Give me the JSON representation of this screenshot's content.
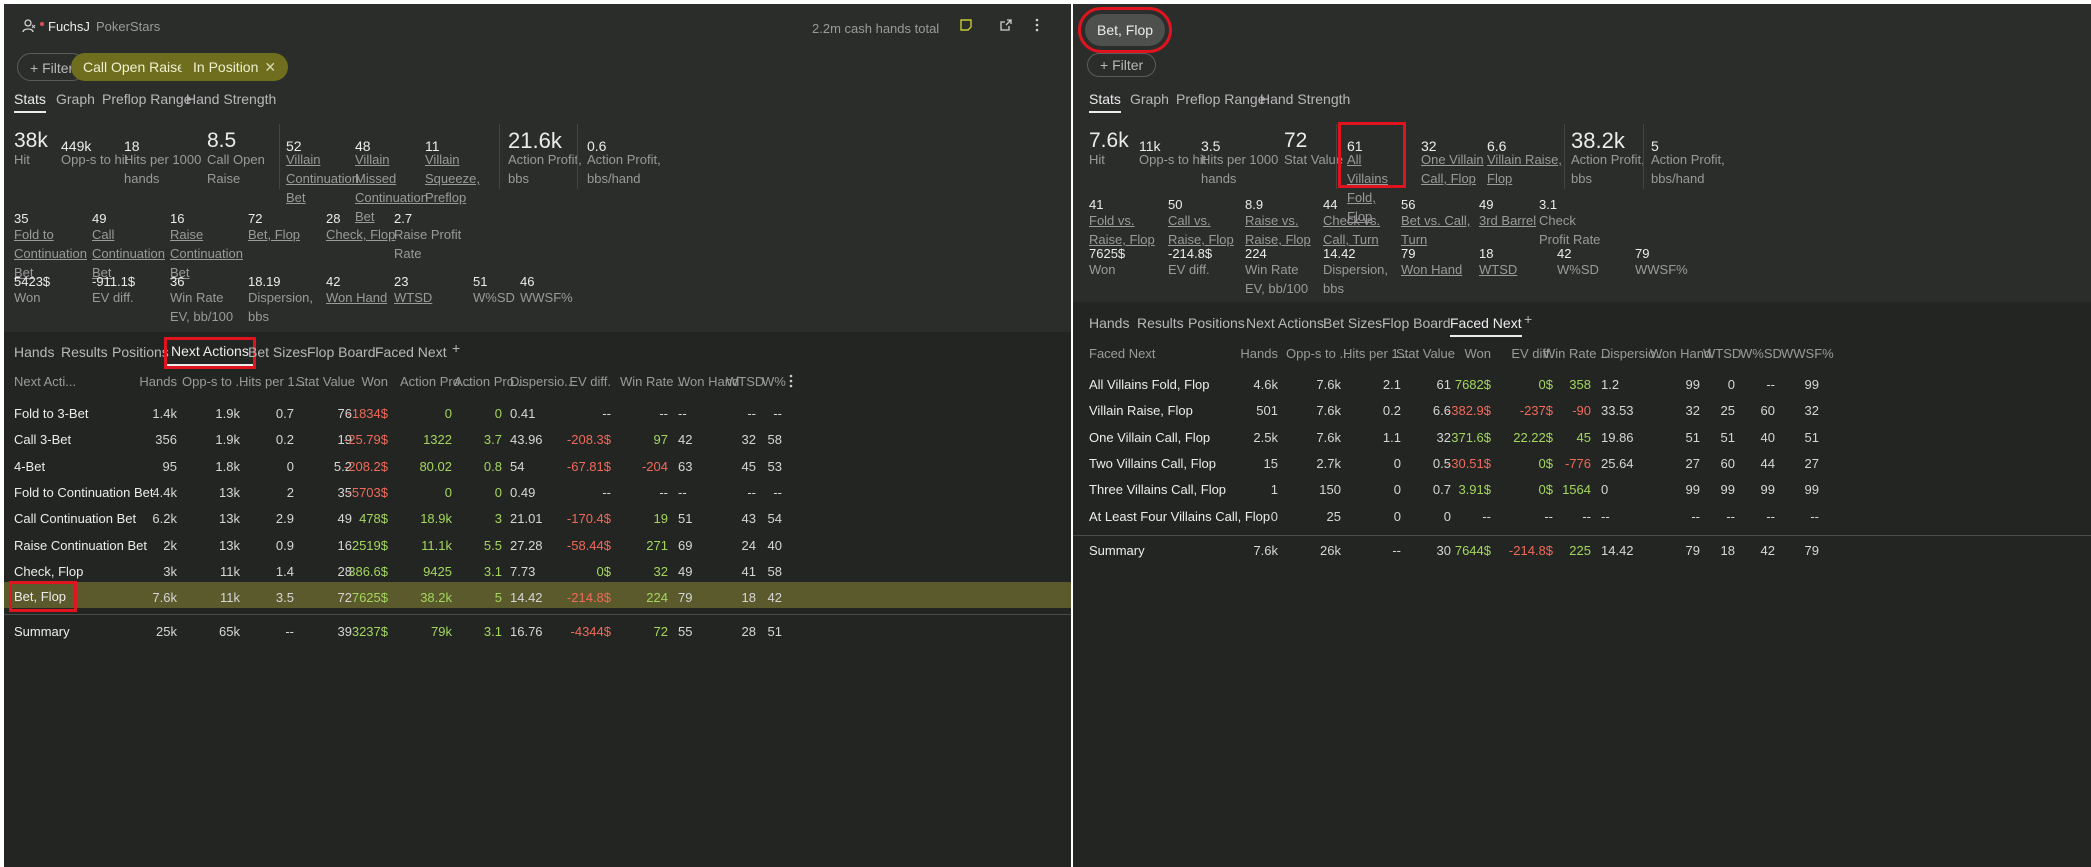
{
  "left": {
    "header": {
      "player": "FuchsJ",
      "site": "PokerStars",
      "hands_total": "2.2m cash hands total"
    },
    "filters": {
      "filter_label": "Filter",
      "chips": [
        "Call Open Raise",
        "In Position"
      ]
    },
    "subtabs": [
      "Stats",
      "Graph",
      "Preflop Range",
      "Hand Strength"
    ],
    "stats_row1": [
      {
        "value": "38k",
        "label": "Hit"
      },
      {
        "value": "449k",
        "label": "Opp-s to hit"
      },
      {
        "value": "18",
        "label": "Hits per 1000 hands"
      },
      {
        "value": "8.5",
        "label": "Call Open Raise"
      },
      {
        "value": "52",
        "label": "Villain Continuation Bet"
      },
      {
        "value": "48",
        "label": "Villain Missed Continuation Bet"
      },
      {
        "value": "11",
        "label": "Villain Squeeze, Preflop"
      },
      {
        "value": "21.6k",
        "label": "Action Profit, bbs"
      },
      {
        "value": "0.6",
        "label": "Action Profit, bbs/hand"
      }
    ],
    "stats_row2": [
      {
        "value": "35",
        "label": "Fold to Continuation Bet"
      },
      {
        "value": "49",
        "label": "Call Continuation Bet"
      },
      {
        "value": "16",
        "label": "Raise Continuation Bet"
      },
      {
        "value": "72",
        "label": "Bet, Flop"
      },
      {
        "value": "28",
        "label": "Check, Flop"
      },
      {
        "value": "2.7",
        "label": "Raise Profit Rate"
      }
    ],
    "stats_row3": [
      {
        "value": "5423$",
        "label": "Won"
      },
      {
        "value": "-911.1$",
        "label": "EV diff."
      },
      {
        "value": "36",
        "label": "Win Rate EV, bb/100"
      },
      {
        "value": "18.19",
        "label": "Dispersion, bbs"
      },
      {
        "value": "42",
        "label": "Won Hand"
      },
      {
        "value": "23",
        "label": "WTSD"
      },
      {
        "value": "51",
        "label": "W%SD"
      },
      {
        "value": "46",
        "label": "WWSF%"
      }
    ],
    "table_tabs": [
      "Hands",
      "Results",
      "Positions",
      "Next Actions",
      "Bet Sizes",
      "Flop Board",
      "Faced Next"
    ],
    "add_tab": "+",
    "columns": [
      "Next Acti...",
      "Hands",
      "Opp-s to ...",
      "Hits per 1...",
      "Stat Value",
      "Won",
      "Action Pro...",
      "Action Pro...",
      "Dispersio...",
      "EV diff.",
      "Win Rate ...",
      "Won Hand",
      "WTSD",
      "W%"
    ],
    "rows": [
      [
        "Fold to 3-Bet",
        "1.4k",
        "1.9k",
        "0.7",
        "76",
        "-1834$",
        "0",
        "0",
        "0.41",
        "--",
        "--",
        "--",
        "--",
        "--"
      ],
      [
        "Call 3-Bet",
        "356",
        "1.9k",
        "0.2",
        "19",
        "-25.79$",
        "1322",
        "3.7",
        "43.96",
        "-208.3$",
        "97",
        "42",
        "32",
        "58"
      ],
      [
        "4-Bet",
        "95",
        "1.8k",
        "0",
        "5.2",
        "-208.2$",
        "80.02",
        "0.8",
        "54",
        "-67.81$",
        "-204",
        "63",
        "45",
        "53"
      ],
      [
        "Fold to Continuation Bet",
        "4.4k",
        "13k",
        "2",
        "35",
        "-5703$",
        "0",
        "0",
        "0.49",
        "--",
        "--",
        "--",
        "--",
        "--"
      ],
      [
        "Call Continuation Bet",
        "6.2k",
        "13k",
        "2.9",
        "49",
        "478$",
        "18.9k",
        "3",
        "21.01",
        "-170.4$",
        "19",
        "51",
        "43",
        "54"
      ],
      [
        "Raise Continuation Bet",
        "2k",
        "13k",
        "0.9",
        "16",
        "2519$",
        "11.1k",
        "5.5",
        "27.28",
        "-58.44$",
        "271",
        "69",
        "24",
        "40"
      ],
      [
        "Check, Flop",
        "3k",
        "11k",
        "1.4",
        "28",
        "386.6$",
        "9425",
        "3.1",
        "7.73",
        "0$",
        "32",
        "49",
        "41",
        "58"
      ],
      [
        "Bet, Flop",
        "7.6k",
        "11k",
        "3.5",
        "72",
        "7625$",
        "38.2k",
        "5",
        "14.42",
        "-214.8$",
        "224",
        "79",
        "18",
        "42"
      ]
    ],
    "summary": [
      "Summary",
      "25k",
      "65k",
      "--",
      "39",
      "3237$",
      "79k",
      "3.1",
      "16.76",
      "-4344$",
      "72",
      "55",
      "28",
      "51"
    ]
  },
  "right": {
    "title_chip": "Bet, Flop",
    "filter_label": "Filter",
    "subtabs": [
      "Stats",
      "Graph",
      "Preflop Range",
      "Hand Strength"
    ],
    "stats_row1": [
      {
        "value": "7.6k",
        "label": "Hit"
      },
      {
        "value": "11k",
        "label": "Opp-s to hit"
      },
      {
        "value": "3.5",
        "label": "Hits per 1000 hands"
      },
      {
        "value": "72",
        "label": "Stat Value"
      },
      {
        "value": "61",
        "label": "All Villains Fold, Flop"
      },
      {
        "value": "32",
        "label": "One Villain Call, Flop"
      },
      {
        "value": "6.6",
        "label": "Villain Raise, Flop"
      },
      {
        "value": "38.2k",
        "label": "Action Profit, bbs"
      },
      {
        "value": "5",
        "label": "Action Profit, bbs/hand"
      }
    ],
    "stats_row2": [
      {
        "value": "41",
        "label": "Fold vs. Raise, Flop"
      },
      {
        "value": "50",
        "label": "Call vs. Raise, Flop"
      },
      {
        "value": "8.9",
        "label": "Raise vs. Raise, Flop"
      },
      {
        "value": "44",
        "label": "Check vs. Call, Turn"
      },
      {
        "value": "56",
        "label": "Bet vs. Call, Turn"
      },
      {
        "value": "49",
        "label": "3rd Barrel"
      },
      {
        "value": "3.1",
        "label": "Check Profit Rate"
      }
    ],
    "stats_row3": [
      {
        "value": "7625$",
        "label": "Won"
      },
      {
        "value": "-214.8$",
        "label": "EV diff."
      },
      {
        "value": "224",
        "label": "Win Rate EV, bb/100"
      },
      {
        "value": "14.42",
        "label": "Dispersion, bbs"
      },
      {
        "value": "79",
        "label": "Won Hand"
      },
      {
        "value": "18",
        "label": "WTSD"
      },
      {
        "value": "42",
        "label": "W%SD"
      },
      {
        "value": "79",
        "label": "WWSF%"
      }
    ],
    "table_tabs": [
      "Hands",
      "Results",
      "Positions",
      "Next Actions",
      "Bet Sizes",
      "Flop Board",
      "Faced Next"
    ],
    "add_tab": "+",
    "columns": [
      "Faced Next",
      "Hands",
      "Opp-s to ...",
      "Hits per 1...",
      "Stat Value",
      "Won",
      "EV diff.",
      "Win Rate ...",
      "Dispersio...",
      "Won Hand",
      "WTSD",
      "W%SD",
      "WWSF%"
    ],
    "rows": [
      [
        "All Villains Fold, Flop",
        "4.6k",
        "7.6k",
        "2.1",
        "61",
        "7682$",
        "0$",
        "358",
        "1.2",
        "99",
        "0",
        "--",
        "99"
      ],
      [
        "Villain Raise, Flop",
        "501",
        "7.6k",
        "0.2",
        "6.6",
        "-382.9$",
        "-237$",
        "-90",
        "33.53",
        "32",
        "25",
        "60",
        "32"
      ],
      [
        "One Villain Call, Flop",
        "2.5k",
        "7.6k",
        "1.1",
        "32",
        "371.6$",
        "22.22$",
        "45",
        "19.86",
        "51",
        "51",
        "40",
        "51"
      ],
      [
        "Two Villains Call, Flop",
        "15",
        "2.7k",
        "0",
        "0.5",
        "-30.51$",
        "0$",
        "-776",
        "25.64",
        "27",
        "60",
        "44",
        "27"
      ],
      [
        "Three Villains Call, Flop",
        "1",
        "150",
        "0",
        "0.7",
        "3.91$",
        "0$",
        "1564",
        "0",
        "99",
        "99",
        "99",
        "99"
      ],
      [
        "At Least Four Villains Call, Flop",
        "0",
        "25",
        "0",
        "0",
        "--",
        "--",
        "--",
        "--",
        "--",
        "--",
        "--",
        "--"
      ]
    ],
    "summary": [
      "Summary",
      "7.6k",
      "26k",
      "--",
      "30",
      "7644$",
      "-214.8$",
      "225",
      "14.42",
      "79",
      "18",
      "42",
      "79"
    ]
  },
  "colors": {
    "panel_bg": "#2b2d2b",
    "table_bg": "#232523",
    "olive_chip": "#6e6e1e",
    "highlight_row": "#5a5a2c",
    "positive": "#a4d65e",
    "negative": "#ef6a5a",
    "annotation_box": "#e0141e"
  },
  "icons": [
    "user-icon",
    "note-icon",
    "export-icon",
    "more-vertical-icon",
    "plus-icon",
    "close-icon"
  ]
}
